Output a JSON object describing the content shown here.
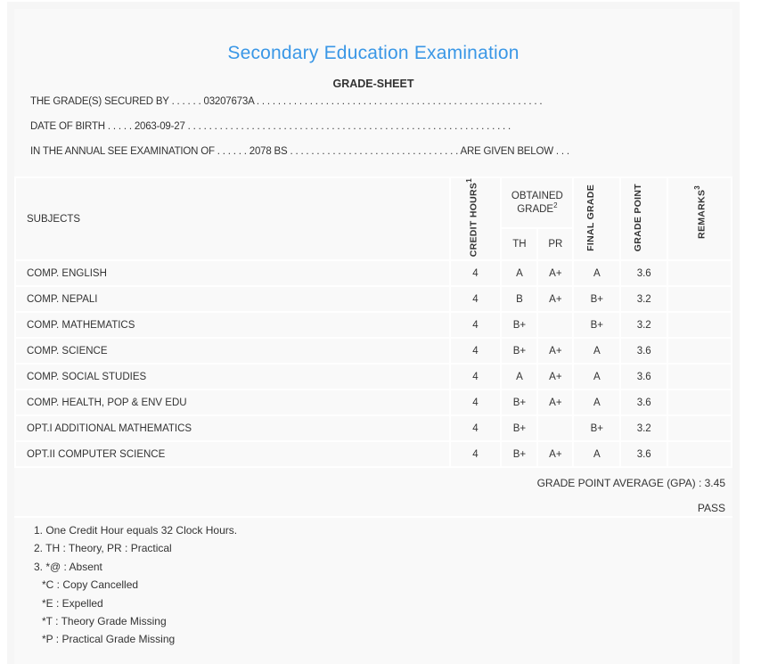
{
  "header": {
    "title": "Secondary Education Examination",
    "subtitle": "GRADE-SHEET"
  },
  "info": {
    "secured_by": "THE GRADE(S) SECURED BY . . . . . . 03207673A . . . . . . . . . . . . . . . . . . . . . . . . . . . . . . . . . . . . . . . . . . . . . . . . . . . . . .",
    "dob": "DATE OF BIRTH . . . . . 2063-09-27 . . . . . . . . . . . . . . . . . . . . . . . . . . . . . . . . . . . . . . . . . . . . . . . . . . . . . . . . . . . . .",
    "exam": "IN THE ANNUAL SEE EXAMINATION OF . . . . . . 2078 BS . . . . . . . . . . . . . . . . . . . . . . . . . . . . . . . . ARE GIVEN BELOW . . ."
  },
  "table": {
    "headers": {
      "subjects": "SUBJECTS",
      "credit": "CREDIT HOURS",
      "credit_sup": "1",
      "obtained": "OBTAINED GRADE",
      "obtained_sup": "2",
      "th": "TH",
      "pr": "PR",
      "final": "FINAL GRADE",
      "gp": "GRADE POINT",
      "remarks": "REMARKS",
      "remarks_sup": "3"
    },
    "rows": [
      {
        "subject": "COMP. ENGLISH",
        "credit": "4",
        "th": "A",
        "pr": "A+",
        "final": "A",
        "gp": "3.6",
        "remarks": ""
      },
      {
        "subject": "COMP. NEPALI",
        "credit": "4",
        "th": "B",
        "pr": "A+",
        "final": "B+",
        "gp": "3.2",
        "remarks": ""
      },
      {
        "subject": "COMP. MATHEMATICS",
        "credit": "4",
        "th": "B+",
        "pr": "",
        "final": "B+",
        "gp": "3.2",
        "remarks": ""
      },
      {
        "subject": "COMP. SCIENCE",
        "credit": "4",
        "th": "B+",
        "pr": "A+",
        "final": "A",
        "gp": "3.6",
        "remarks": ""
      },
      {
        "subject": "COMP. SOCIAL STUDIES",
        "credit": "4",
        "th": "A",
        "pr": "A+",
        "final": "A",
        "gp": "3.6",
        "remarks": ""
      },
      {
        "subject": "COMP. HEALTH, POP & ENV EDU",
        "credit": "4",
        "th": "B+",
        "pr": "A+",
        "final": "A",
        "gp": "3.6",
        "remarks": ""
      },
      {
        "subject": "OPT.I ADDITIONAL MATHEMATICS",
        "credit": "4",
        "th": "B+",
        "pr": "",
        "final": "B+",
        "gp": "3.2",
        "remarks": ""
      },
      {
        "subject": "OPT.II COMPUTER SCIENCE",
        "credit": "4",
        "th": "B+",
        "pr": "A+",
        "final": "A",
        "gp": "3.6",
        "remarks": ""
      }
    ]
  },
  "result": {
    "gpa": "GRADE POINT AVERAGE (GPA) : 3.45",
    "status": "PASS"
  },
  "notes": [
    "1. One Credit Hour equals 32 Clock Hours.",
    "2. TH : Theory, PR : Practical",
    "3. *@ : Absent",
    "*C : Copy Cancelled",
    "*E : Expelled",
    "*T : Theory Grade Missing",
    "*P : Practical Grade Missing"
  ],
  "colors": {
    "title": "#3a97e6",
    "background": "#f9f9f9"
  }
}
